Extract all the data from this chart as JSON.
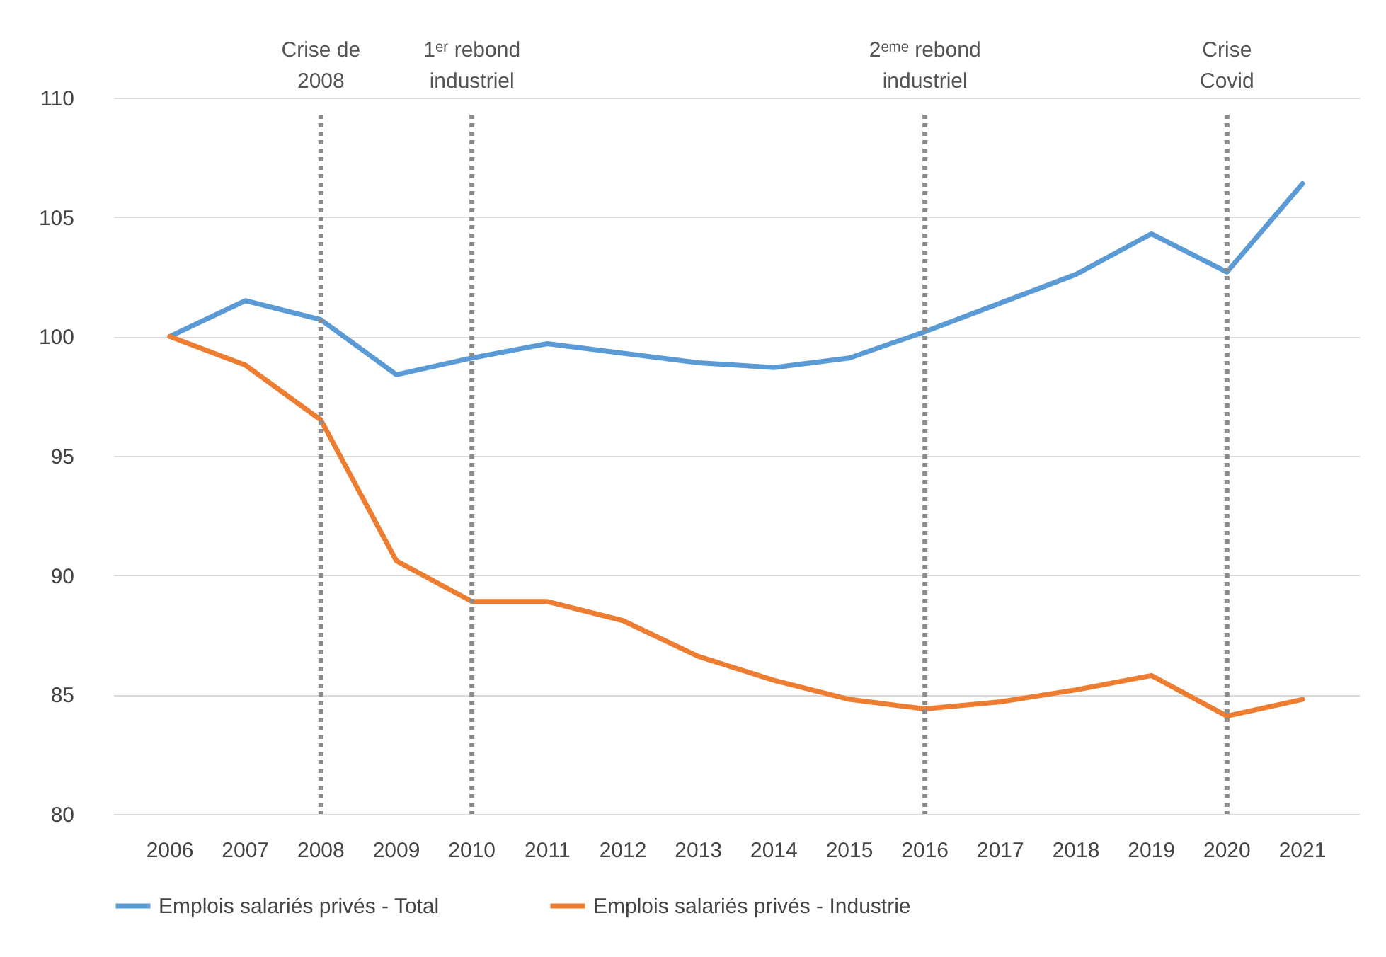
{
  "chart_data": {
    "type": "line",
    "categories": [
      "2006",
      "2007",
      "2008",
      "2009",
      "2010",
      "2011",
      "2012",
      "2013",
      "2014",
      "2015",
      "2016",
      "2017",
      "2018",
      "2019",
      "2020",
      "2021"
    ],
    "series": [
      {
        "name": "Emplois salariés privés - Total",
        "color": "#5b9bd5",
        "values": [
          100,
          101.5,
          100.7,
          98.4,
          99.1,
          99.7,
          99.3,
          98.9,
          98.7,
          99.1,
          100.2,
          101.4,
          102.6,
          104.3,
          102.7,
          106.4
        ]
      },
      {
        "name": "Emplois salariés privés - Industrie",
        "color": "#ed7d31",
        "values": [
          100,
          98.8,
          96.5,
          90.6,
          88.9,
          88.9,
          88.1,
          86.6,
          85.6,
          84.8,
          84.4,
          84.7,
          85.2,
          85.8,
          84.1,
          84.8
        ]
      }
    ],
    "ylim": [
      80,
      110
    ],
    "yticks": [
      80,
      85,
      90,
      95,
      100,
      105,
      110
    ],
    "grid": "y",
    "legend": "bottom",
    "ref_lines": [
      {
        "axis": "x",
        "value": "2008",
        "label": "Crise de\n2008",
        "color": "#8c8c8c",
        "line_style": "dotted"
      },
      {
        "axis": "x",
        "value": "2010",
        "label": "1ᵉʳ rebond\nindustriel",
        "color": "#8c8c8c",
        "line_style": "dotted"
      },
      {
        "axis": "x",
        "value": "2016",
        "label": "2ᵉᵐᵉ rebond\nindustriel",
        "color": "#8c8c8c",
        "line_style": "dotted"
      },
      {
        "axis": "x",
        "value": "2020",
        "label": "Crise\nCovid",
        "color": "#8c8c8c",
        "line_style": "dotted"
      }
    ]
  }
}
